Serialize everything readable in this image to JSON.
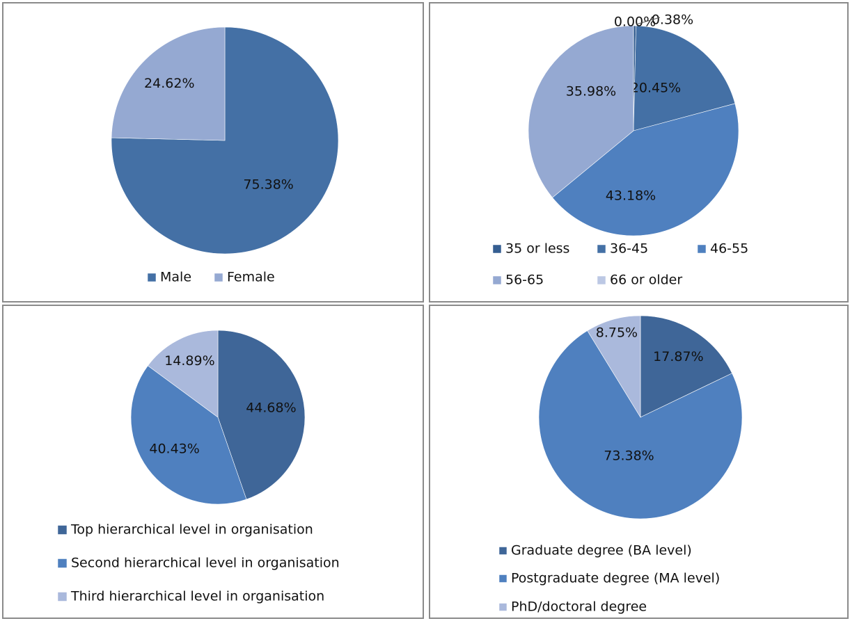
{
  "chart_data": [
    {
      "type": "pie",
      "categories": [
        "Male",
        "Female"
      ],
      "values": [
        75.38,
        24.62
      ],
      "labels": [
        "75.38%",
        "24.62%"
      ],
      "colors": [
        "#4470a5",
        "#95a9d2"
      ],
      "legend_position": "bottom"
    },
    {
      "type": "pie",
      "categories": [
        "35 or less",
        "36-45",
        "46-55",
        "56-65",
        "66 or older"
      ],
      "values": [
        0.38,
        20.45,
        43.18,
        35.98,
        0.0
      ],
      "labels": [
        "0.38%",
        "20.45%",
        "43.18%",
        "35.98%",
        "0.00%"
      ],
      "colors": [
        "#355e91",
        "#4470a5",
        "#4f80bf",
        "#95a9d2",
        "#bcc8e4"
      ],
      "legend_position": "bottom"
    },
    {
      "type": "pie",
      "categories": [
        "Top hierarchical level in organisation",
        "Second hierarchical level in organisation",
        "Third hierarchical level in organisation"
      ],
      "values": [
        44.68,
        40.43,
        14.89
      ],
      "labels": [
        "44.68%",
        "40.43%",
        "14.89%"
      ],
      "colors": [
        "#3f6698",
        "#4f80bf",
        "#aab9dc"
      ],
      "legend_position": "bottom"
    },
    {
      "type": "pie",
      "categories": [
        "Graduate degree (BA level)",
        "Postgraduate degree (MA level)",
        "PhD/doctoral degree"
      ],
      "values": [
        17.87,
        73.38,
        8.75
      ],
      "labels": [
        "17.87%",
        "73.38%",
        "8.75%"
      ],
      "colors": [
        "#3f6698",
        "#4f80bf",
        "#aab9dc"
      ],
      "legend_position": "bottom"
    }
  ]
}
